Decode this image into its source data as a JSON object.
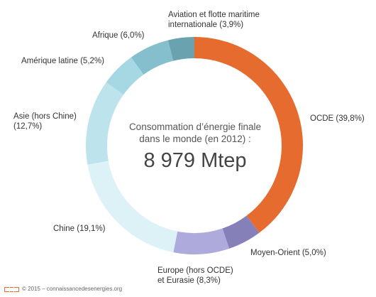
{
  "chart_data": {
    "type": "pie",
    "donut": true,
    "title": "Consommation d’énergie finale dans le monde (en 2012) :",
    "title_lines": [
      "Consommation d’énergie finale",
      "dans le monde (en 2012) :"
    ],
    "total_label": "8 979 Mtep",
    "slices": [
      {
        "label_lines": [
          "OCDE (39,8%)"
        ],
        "value": 39.8,
        "color": "#e66b2f"
      },
      {
        "label_lines": [
          "Moyen-Orient (5,0%)"
        ],
        "value": 5.0,
        "color": "#8680b8"
      },
      {
        "label_lines": [
          "Europe (hors OCDE)",
          "et Eurasie (8,3%)"
        ],
        "value": 8.3,
        "color": "#aeaadb"
      },
      {
        "label_lines": [
          "Chine (19,1%)"
        ],
        "value": 19.1,
        "color": "#ddf2f6"
      },
      {
        "label_lines": [
          "Asie (hors Chine)",
          "(12,7%)"
        ],
        "value": 12.7,
        "color": "#bde3ec"
      },
      {
        "label_lines": [
          "Amérique latine (5,2%)"
        ],
        "value": 5.2,
        "color": "#a6d8e4"
      },
      {
        "label_lines": [
          "Afrique (6,0%)"
        ],
        "value": 6.0,
        "color": "#85bfcd"
      },
      {
        "label_lines": [
          "Aviation et flotte maritime",
          "internationale (3,9%)"
        ],
        "value": 3.9,
        "color": "#6ba2b0"
      }
    ]
  },
  "footer": {
    "text": "© 2015 – connaissancedesenergies.org",
    "logo_color": "#e66b2f"
  }
}
